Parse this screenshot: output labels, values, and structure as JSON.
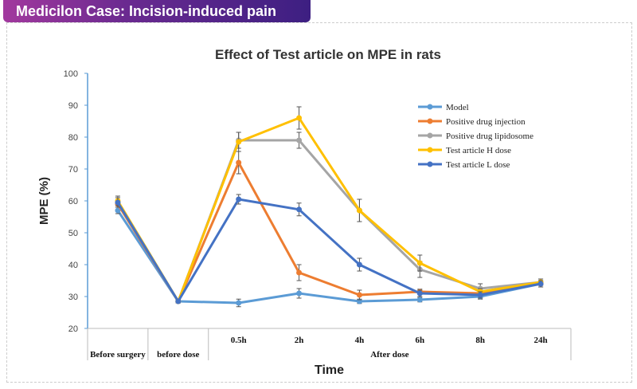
{
  "banner": {
    "title": "Medicilon Case: Incision-induced pain model",
    "gradient": [
      "#a2399e",
      "#3d1f82"
    ]
  },
  "chart_data": {
    "type": "line",
    "title": "Effect of Test article on MPE in rats",
    "xlabel": "Time",
    "ylabel": "MPE (%)",
    "ylim": [
      20,
      100
    ],
    "yticks": [
      20,
      30,
      40,
      50,
      60,
      70,
      80,
      90,
      100
    ],
    "categories": [
      "Before surgery",
      "before dose",
      "0.5h",
      "2h",
      "4h",
      "6h",
      "8h",
      "24h"
    ],
    "category_groups": [
      {
        "label": "Before surgery",
        "span": 1
      },
      {
        "label": "before dose",
        "span": 1
      },
      {
        "label": "After dose",
        "span": 6
      }
    ],
    "legend_position": "top-right",
    "grid": false,
    "series": [
      {
        "name": "Model",
        "color": "#5b9bd5",
        "values": [
          57,
          28.5,
          28,
          31,
          28.5,
          29,
          30,
          34
        ],
        "errors": [
          1,
          0.5,
          1.2,
          1.5,
          0.7,
          0.7,
          0.8,
          1
        ]
      },
      {
        "name": "Positive drug injection",
        "color": "#ed7d31",
        "values": [
          59,
          28.5,
          72,
          37.5,
          30.5,
          31.5,
          31,
          34
        ],
        "errors": [
          1,
          0.5,
          3.5,
          2.5,
          1.5,
          0.8,
          0.8,
          1
        ]
      },
      {
        "name": "Positive drug lipidosome",
        "color": "#a5a5a5",
        "values": [
          59.5,
          28.5,
          79,
          79,
          57,
          38.5,
          32.5,
          34.5
        ],
        "errors": [
          1.5,
          0.5,
          2.5,
          2.5,
          3.5,
          2.5,
          1.5,
          1
        ]
      },
      {
        "name": "Test article H dose",
        "color": "#ffc000",
        "values": [
          60,
          28.5,
          78.5,
          86,
          57,
          40.5,
          31.5,
          34.5
        ],
        "errors": [
          1.5,
          0.5,
          3,
          3.5,
          3.5,
          2.5,
          1,
          1
        ]
      },
      {
        "name": "Test article L dose",
        "color": "#4472c4",
        "values": [
          59.5,
          28.5,
          60.5,
          57.3,
          40,
          31,
          30.5,
          34
        ],
        "errors": [
          1.5,
          0.5,
          1.5,
          2,
          2,
          1,
          1,
          1
        ]
      }
    ]
  }
}
